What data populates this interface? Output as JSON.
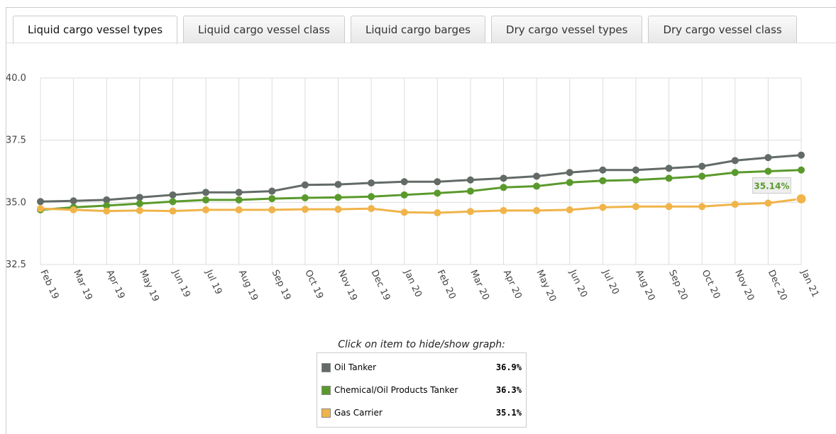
{
  "tabs": [
    "Liquid cargo vessel types",
    "Liquid cargo vessel class",
    "Liquid cargo barges",
    "Dry cargo vessel types",
    "Dry cargo vessel class"
  ],
  "chart_data": {
    "type": "line",
    "categories": [
      "Feb 19",
      "Mar 19",
      "Apr 19",
      "May 19",
      "Jun 19",
      "Jul 19",
      "Aug 19",
      "Sep 19",
      "Oct 19",
      "Nov 19",
      "Dec 19",
      "Jan 20",
      "Feb 20",
      "Mar 20",
      "Apr 20",
      "May 20",
      "Jun 20",
      "Jul 20",
      "Aug 20",
      "Sep 20",
      "Oct 20",
      "Nov 20",
      "Dec 20",
      "Jan 21"
    ],
    "series": [
      {
        "name": "Oil Tanker",
        "color": "#636b66",
        "legend_value": 36.9,
        "legend_label": "36.9%",
        "values": [
          35.03,
          35.06,
          35.1,
          35.2,
          35.3,
          35.4,
          35.4,
          35.45,
          35.7,
          35.72,
          35.78,
          35.83,
          35.83,
          35.9,
          35.97,
          36.05,
          36.2,
          36.3,
          36.3,
          36.37,
          36.45,
          36.68,
          36.8,
          36.9
        ]
      },
      {
        "name": "Chemical/Oil Products Tanker",
        "color": "#5a9a2c",
        "legend_value": 36.3,
        "legend_label": "36.3%",
        "values": [
          34.7,
          34.8,
          34.87,
          34.95,
          35.03,
          35.1,
          35.1,
          35.15,
          35.18,
          35.2,
          35.23,
          35.3,
          35.37,
          35.45,
          35.6,
          35.65,
          35.8,
          35.87,
          35.9,
          35.97,
          36.05,
          36.2,
          36.25,
          36.3
        ]
      },
      {
        "name": "Gas Carrier",
        "color": "#f0b44a",
        "legend_value": 35.1,
        "legend_label": "35.1%",
        "values": [
          34.75,
          34.7,
          34.65,
          34.67,
          34.65,
          34.7,
          34.7,
          34.7,
          34.72,
          34.72,
          34.75,
          34.6,
          34.58,
          34.63,
          34.67,
          34.67,
          34.7,
          34.8,
          34.83,
          34.83,
          34.83,
          34.92,
          34.97,
          35.14
        ]
      }
    ],
    "tooltip": {
      "value": 35.14,
      "label": "35.14%"
    },
    "legend_title": "Click on item to hide/show graph:",
    "ylim": [
      32.5,
      40
    ],
    "yticks": [
      32.5,
      {
        "value": 35,
        "label": "35.0"
      },
      37.5,
      {
        "value": 40,
        "label": "40.0"
      }
    ],
    "grid": true
  }
}
